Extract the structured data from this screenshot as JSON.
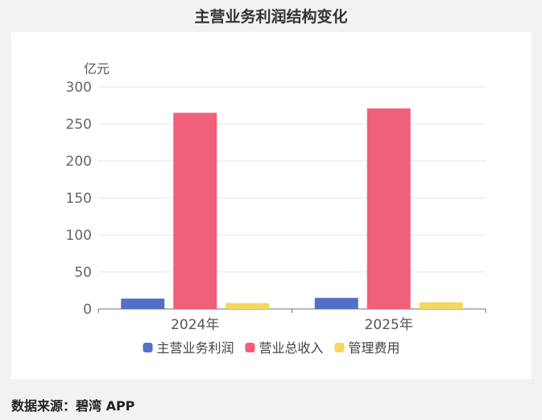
{
  "title": "主营业务利润结构变化",
  "source": "数据来源：碧湾 APP",
  "chart_data": {
    "type": "bar",
    "title": "主营业务利润结构变化",
    "ylabel": "亿元",
    "xlabel": "",
    "ylim": [
      0,
      300
    ],
    "yticks": [
      0,
      50,
      100,
      150,
      200,
      250,
      300
    ],
    "categories": [
      "2024年",
      "2025年"
    ],
    "series": [
      {
        "name": "主营业务利润",
        "color": "#5470c6",
        "values": [
          14,
          15
        ]
      },
      {
        "name": "营业总收入",
        "color": "#f0607a",
        "values": [
          265,
          271
        ]
      },
      {
        "name": "管理费用",
        "color": "#f5d75e",
        "values": [
          8,
          9
        ]
      }
    ],
    "grid": true,
    "legend": "bottom-center"
  }
}
